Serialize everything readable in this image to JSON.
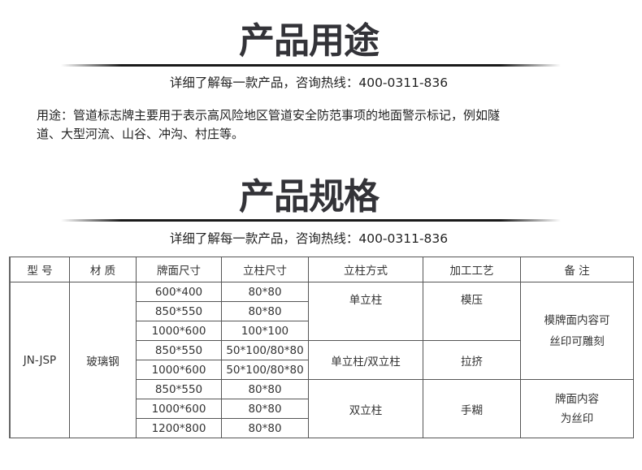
{
  "section1": {
    "title": "产品用途",
    "subtitle": "详细了解每一款产品，咨询热线：400-0311-836",
    "description_line1": "用途：管道标志牌主要用于表示高风险地区管道安全防范事项的地面警示标记，例如隧",
    "description_line2": "道、大型河流、山谷、冲沟、村庄等。"
  },
  "section2": {
    "title": "产品规格",
    "subtitle": "详细了解每一款产品，咨询热线：400-0311-836"
  },
  "table": {
    "headers": [
      "型 号",
      "材 质",
      "牌面尺寸",
      "立柱尺寸",
      "立柱方式",
      "加工工艺",
      "备 注"
    ],
    "model": "JN-JSP",
    "material": "玻璃钢",
    "rows": [
      {
        "face": "600*400",
        "post": "80*80"
      },
      {
        "face": "850*550",
        "post": "80*80"
      },
      {
        "face": "1000*600",
        "post": "100*100"
      },
      {
        "face": "850*550",
        "post": "50*100/80*80"
      },
      {
        "face": "1000*600",
        "post": "50*100/80*80"
      },
      {
        "face": "850*550",
        "post": "80*80"
      },
      {
        "face": "1000*600",
        "post": "80*80"
      },
      {
        "face": "1200*800",
        "post": "80*80"
      }
    ],
    "groups": [
      {
        "mount": "单立柱",
        "process": "模压"
      },
      {
        "mount": "单立柱/双立柱",
        "process": "拉挤"
      },
      {
        "mount": "双立柱",
        "process": "手糊"
      }
    ],
    "notes": [
      {
        "line1": "模牌面内容可",
        "line2": "丝印可雕刻"
      },
      {
        "line1": "牌面内容",
        "line2": "为丝印"
      }
    ]
  }
}
